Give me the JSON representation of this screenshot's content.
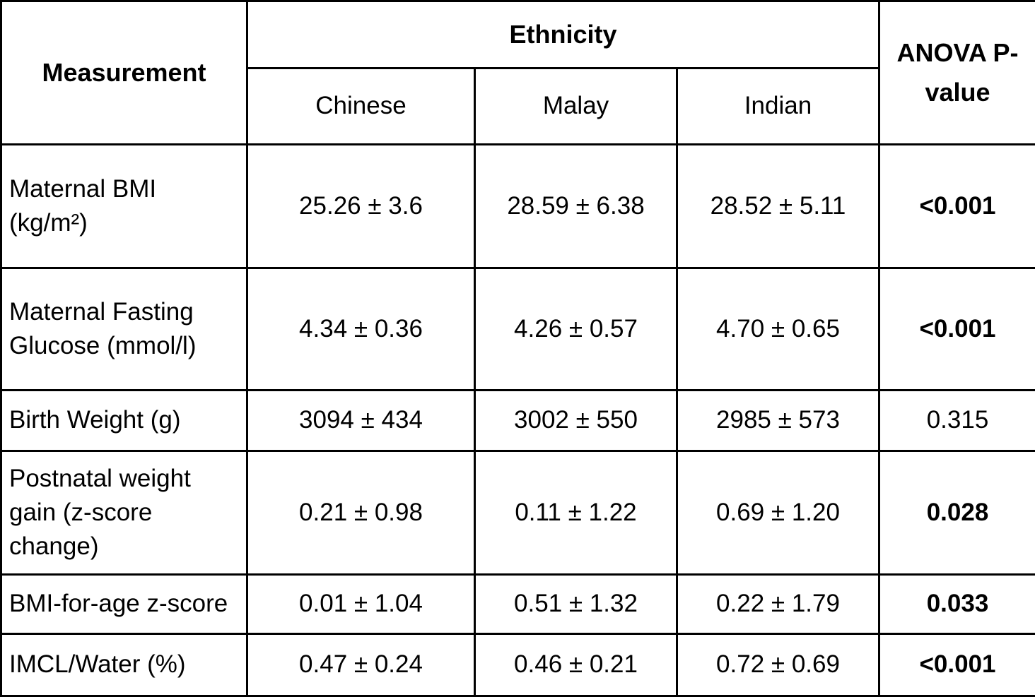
{
  "table": {
    "header": {
      "measurement": "Measurement",
      "ethnicity_group": "Ethnicity",
      "ethnic_columns": [
        "Chinese",
        "Malay",
        "Indian"
      ],
      "anova": "ANOVA P-\nvalue"
    },
    "rows": [
      {
        "label": "Maternal BMI\n(kg/m²)",
        "chinese": "25.26 ± 3.6",
        "malay": "28.59 ± 6.38",
        "indian": "28.52 ± 5.11",
        "p_value": "<0.001",
        "significant": "true"
      },
      {
        "label": "Maternal Fasting\nGlucose (mmol/l)",
        "chinese": "4.34 ± 0.36",
        "malay": "4.26 ± 0.57",
        "indian": "4.70 ± 0.65",
        "p_value": "<0.001",
        "significant": "true"
      },
      {
        "label": "Birth Weight (g)",
        "chinese": "3094 ± 434",
        "malay": "3002 ± 550",
        "indian": "2985 ± 573",
        "p_value": "0.315",
        "significant": "false"
      },
      {
        "label": "Postnatal weight\ngain (z-score change)",
        "chinese": "0.21 ± 0.98",
        "malay": "0.11 ± 1.22",
        "indian": "0.69 ± 1.20",
        "p_value": "0.028",
        "significant": "true"
      },
      {
        "label": "BMI-for-age z-score",
        "chinese": "0.01 ± 1.04",
        "malay": "0.51 ± 1.32",
        "indian": "0.22 ± 1.79",
        "p_value": "0.033",
        "significant": "true"
      },
      {
        "label": "IMCL/Water (%)",
        "chinese": "0.47 ± 0.24",
        "malay": "0.46 ± 0.21",
        "indian": "0.72 ± 0.69",
        "p_value": "<0.001",
        "significant": "true"
      }
    ]
  }
}
